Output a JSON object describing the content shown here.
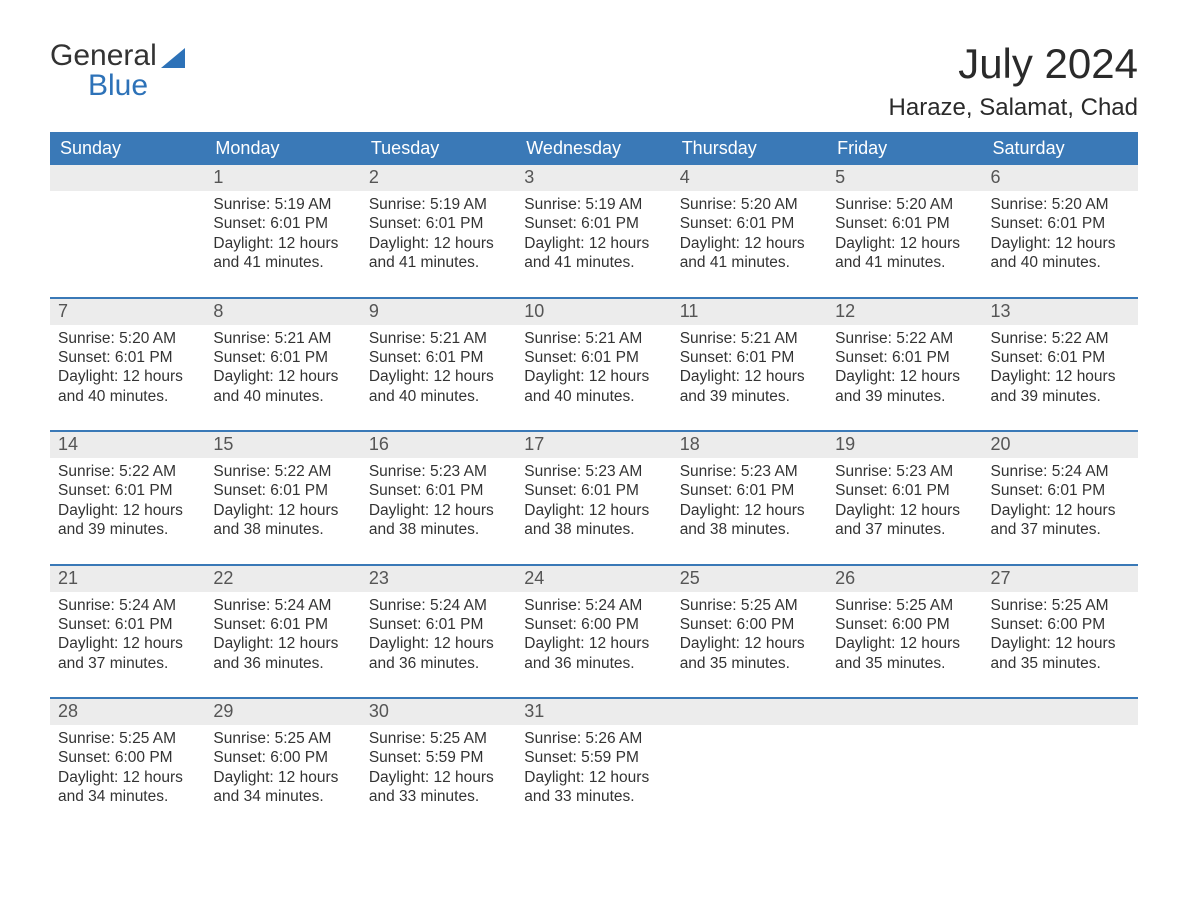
{
  "logo": {
    "line1": "General",
    "line2": "Blue"
  },
  "title": "July 2024",
  "location": "Haraze, Salamat, Chad",
  "colors": {
    "header_bg": "#3a79b7",
    "header_fg": "#ffffff",
    "cell_border": "#3a79b7",
    "daynum_bg": "#ececec",
    "logo_blue": "#2d72b8",
    "text": "#333333",
    "background": "#ffffff"
  },
  "day_names": [
    "Sunday",
    "Monday",
    "Tuesday",
    "Wednesday",
    "Thursday",
    "Friday",
    "Saturday"
  ],
  "labels": {
    "sunrise": "Sunrise:",
    "sunset": "Sunset:",
    "daylight": "Daylight:"
  },
  "weeks": [
    [
      null,
      {
        "n": 1,
        "sunrise": "5:19 AM",
        "sunset": "6:01 PM",
        "daylight": "12 hours and 41 minutes."
      },
      {
        "n": 2,
        "sunrise": "5:19 AM",
        "sunset": "6:01 PM",
        "daylight": "12 hours and 41 minutes."
      },
      {
        "n": 3,
        "sunrise": "5:19 AM",
        "sunset": "6:01 PM",
        "daylight": "12 hours and 41 minutes."
      },
      {
        "n": 4,
        "sunrise": "5:20 AM",
        "sunset": "6:01 PM",
        "daylight": "12 hours and 41 minutes."
      },
      {
        "n": 5,
        "sunrise": "5:20 AM",
        "sunset": "6:01 PM",
        "daylight": "12 hours and 41 minutes."
      },
      {
        "n": 6,
        "sunrise": "5:20 AM",
        "sunset": "6:01 PM",
        "daylight": "12 hours and 40 minutes."
      }
    ],
    [
      {
        "n": 7,
        "sunrise": "5:20 AM",
        "sunset": "6:01 PM",
        "daylight": "12 hours and 40 minutes."
      },
      {
        "n": 8,
        "sunrise": "5:21 AM",
        "sunset": "6:01 PM",
        "daylight": "12 hours and 40 minutes."
      },
      {
        "n": 9,
        "sunrise": "5:21 AM",
        "sunset": "6:01 PM",
        "daylight": "12 hours and 40 minutes."
      },
      {
        "n": 10,
        "sunrise": "5:21 AM",
        "sunset": "6:01 PM",
        "daylight": "12 hours and 40 minutes."
      },
      {
        "n": 11,
        "sunrise": "5:21 AM",
        "sunset": "6:01 PM",
        "daylight": "12 hours and 39 minutes."
      },
      {
        "n": 12,
        "sunrise": "5:22 AM",
        "sunset": "6:01 PM",
        "daylight": "12 hours and 39 minutes."
      },
      {
        "n": 13,
        "sunrise": "5:22 AM",
        "sunset": "6:01 PM",
        "daylight": "12 hours and 39 minutes."
      }
    ],
    [
      {
        "n": 14,
        "sunrise": "5:22 AM",
        "sunset": "6:01 PM",
        "daylight": "12 hours and 39 minutes."
      },
      {
        "n": 15,
        "sunrise": "5:22 AM",
        "sunset": "6:01 PM",
        "daylight": "12 hours and 38 minutes."
      },
      {
        "n": 16,
        "sunrise": "5:23 AM",
        "sunset": "6:01 PM",
        "daylight": "12 hours and 38 minutes."
      },
      {
        "n": 17,
        "sunrise": "5:23 AM",
        "sunset": "6:01 PM",
        "daylight": "12 hours and 38 minutes."
      },
      {
        "n": 18,
        "sunrise": "5:23 AM",
        "sunset": "6:01 PM",
        "daylight": "12 hours and 38 minutes."
      },
      {
        "n": 19,
        "sunrise": "5:23 AM",
        "sunset": "6:01 PM",
        "daylight": "12 hours and 37 minutes."
      },
      {
        "n": 20,
        "sunrise": "5:24 AM",
        "sunset": "6:01 PM",
        "daylight": "12 hours and 37 minutes."
      }
    ],
    [
      {
        "n": 21,
        "sunrise": "5:24 AM",
        "sunset": "6:01 PM",
        "daylight": "12 hours and 37 minutes."
      },
      {
        "n": 22,
        "sunrise": "5:24 AM",
        "sunset": "6:01 PM",
        "daylight": "12 hours and 36 minutes."
      },
      {
        "n": 23,
        "sunrise": "5:24 AM",
        "sunset": "6:01 PM",
        "daylight": "12 hours and 36 minutes."
      },
      {
        "n": 24,
        "sunrise": "5:24 AM",
        "sunset": "6:00 PM",
        "daylight": "12 hours and 36 minutes."
      },
      {
        "n": 25,
        "sunrise": "5:25 AM",
        "sunset": "6:00 PM",
        "daylight": "12 hours and 35 minutes."
      },
      {
        "n": 26,
        "sunrise": "5:25 AM",
        "sunset": "6:00 PM",
        "daylight": "12 hours and 35 minutes."
      },
      {
        "n": 27,
        "sunrise": "5:25 AM",
        "sunset": "6:00 PM",
        "daylight": "12 hours and 35 minutes."
      }
    ],
    [
      {
        "n": 28,
        "sunrise": "5:25 AM",
        "sunset": "6:00 PM",
        "daylight": "12 hours and 34 minutes."
      },
      {
        "n": 29,
        "sunrise": "5:25 AM",
        "sunset": "6:00 PM",
        "daylight": "12 hours and 34 minutes."
      },
      {
        "n": 30,
        "sunrise": "5:25 AM",
        "sunset": "5:59 PM",
        "daylight": "12 hours and 33 minutes."
      },
      {
        "n": 31,
        "sunrise": "5:26 AM",
        "sunset": "5:59 PM",
        "daylight": "12 hours and 33 minutes."
      },
      null,
      null,
      null
    ]
  ]
}
